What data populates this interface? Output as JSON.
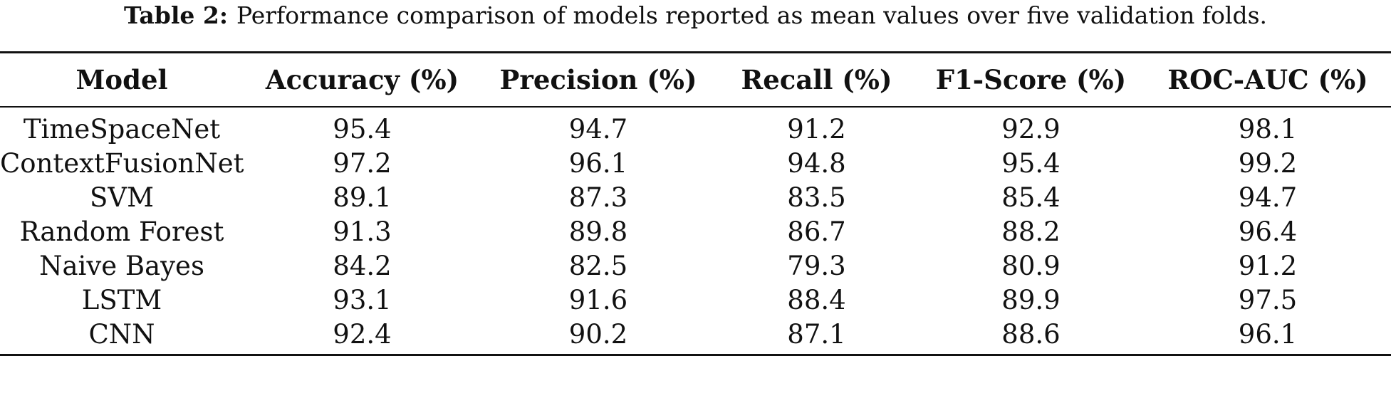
{
  "caption": {
    "label": "Table 2:",
    "text": "Performance comparison of models reported as mean values over five validation folds."
  },
  "table": {
    "headers": [
      "Model",
      "Accuracy (%)",
      "Precision (%)",
      "Recall (%)",
      "F1-Score (%)",
      "ROC-AUC (%)"
    ],
    "rows": [
      [
        "TimeSpaceNet",
        "95.4",
        "94.7",
        "91.2",
        "92.9",
        "98.1"
      ],
      [
        "ContextFusionNet",
        "97.2",
        "96.1",
        "94.8",
        "95.4",
        "99.2"
      ],
      [
        "SVM",
        "89.1",
        "87.3",
        "83.5",
        "85.4",
        "94.7"
      ],
      [
        "Random Forest",
        "91.3",
        "89.8",
        "86.7",
        "88.2",
        "96.4"
      ],
      [
        "Naive Bayes",
        "84.2",
        "82.5",
        "79.3",
        "80.9",
        "91.2"
      ],
      [
        "LSTM",
        "93.1",
        "91.6",
        "88.4",
        "89.9",
        "97.5"
      ],
      [
        "CNN",
        "92.4",
        "90.2",
        "87.1",
        "88.6",
        "96.1"
      ]
    ]
  }
}
